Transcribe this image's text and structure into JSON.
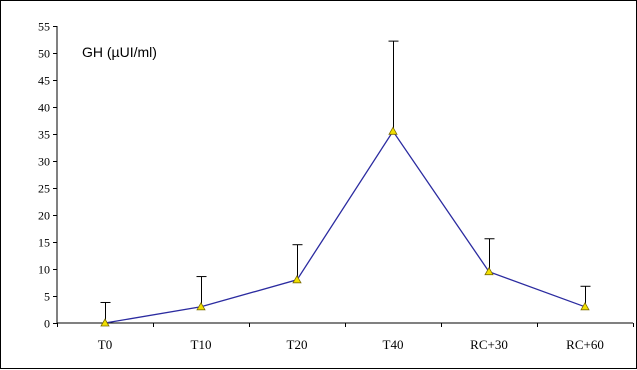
{
  "chart_data": {
    "type": "line",
    "title": "GH (µUI/ml)",
    "xlabel": "",
    "ylabel": "",
    "categories": [
      "T0",
      "T10",
      "T20",
      "T40",
      "RC+30",
      "RC+60"
    ],
    "series": [
      {
        "values": [
          0,
          3,
          8,
          35.5,
          9.5,
          3
        ],
        "error_plus": [
          3.8,
          5.6,
          6.5,
          16.7,
          6.1,
          3.8
        ]
      }
    ],
    "ylim": [
      0,
      55
    ],
    "yticks": [
      0,
      5,
      10,
      15,
      20,
      25,
      30,
      35,
      40,
      45,
      50,
      55
    ],
    "grid": false,
    "legend": "none",
    "colors": {
      "line": "#2b2ba0",
      "marker_fill": "#f2e000",
      "marker_stroke": "#7a6a00",
      "errorbar": "#000000",
      "axis": "#000000"
    }
  }
}
